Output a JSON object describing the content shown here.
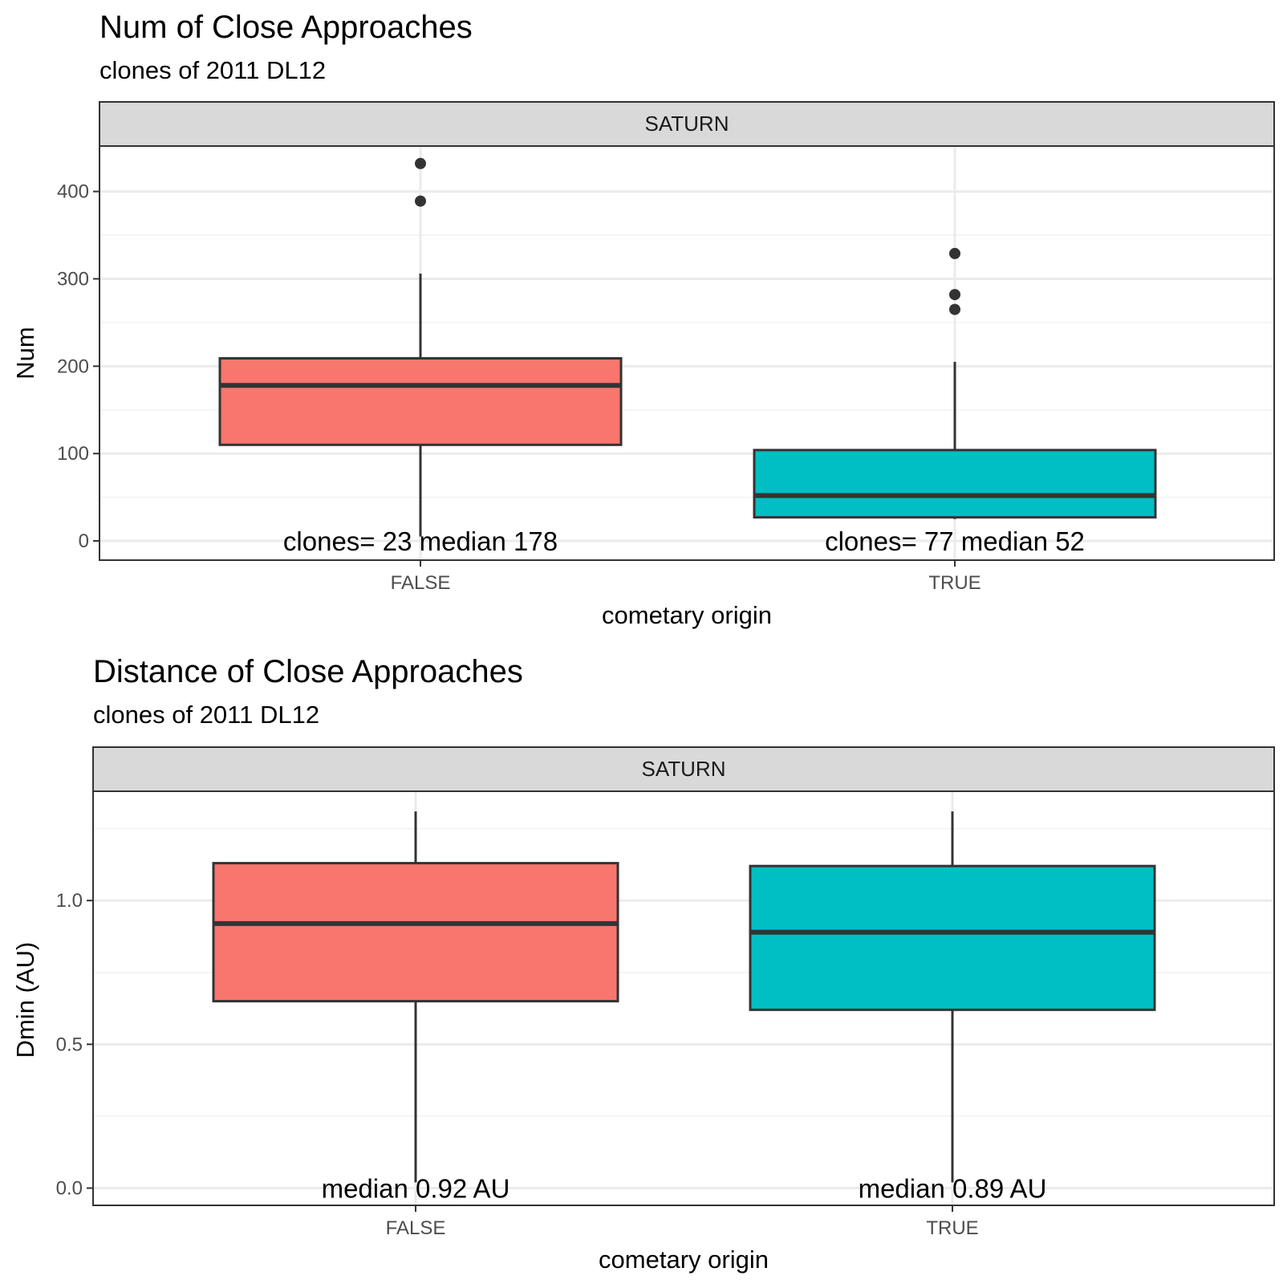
{
  "chart_data": [
    {
      "type": "boxplot",
      "title": "Num of Close Approaches",
      "subtitle": "clones of 2011 DL12",
      "facet": "SATURN",
      "xlabel": "cometary origin",
      "ylabel": "Num",
      "categories": [
        "FALSE",
        "TRUE"
      ],
      "yticks": [
        "0",
        "100",
        "200",
        "300",
        "400"
      ],
      "ytick_values": [
        0,
        100,
        200,
        300,
        400
      ],
      "ylim": [
        -22,
        452
      ],
      "grid": true,
      "colors": [
        "#F8766D",
        "#00BFC4"
      ],
      "boxes": [
        {
          "category": "FALSE",
          "whisker_low": 5,
          "q1": 110,
          "median": 178,
          "q3": 209,
          "whisker_high": 306,
          "outliers": [
            389,
            432
          ]
        },
        {
          "category": "TRUE",
          "whisker_low": 25,
          "q1": 27,
          "median": 52,
          "q3": 104,
          "whisker_high": 205,
          "outliers": [
            265,
            282,
            329
          ]
        }
      ],
      "annotations": [
        "clones= 23 median 178",
        "clones= 77 median 52"
      ]
    },
    {
      "type": "boxplot",
      "title": "Distance of Close Approaches",
      "subtitle": "clones of 2011 DL12",
      "facet": "SATURN",
      "xlabel": "cometary origin",
      "ylabel": "Dmin (AU)",
      "categories": [
        "FALSE",
        "TRUE"
      ],
      "yticks": [
        "0.0",
        "0.5",
        "1.0"
      ],
      "ytick_values": [
        0,
        0.5,
        1.0
      ],
      "ylim": [
        -0.06,
        1.38
      ],
      "grid": true,
      "colors": [
        "#F8766D",
        "#00BFC4"
      ],
      "boxes": [
        {
          "category": "FALSE",
          "whisker_low": 0.02,
          "q1": 0.65,
          "median": 0.92,
          "q3": 1.13,
          "whisker_high": 1.31,
          "outliers": []
        },
        {
          "category": "TRUE",
          "whisker_low": 0.02,
          "q1": 0.62,
          "median": 0.89,
          "q3": 1.12,
          "whisker_high": 1.31,
          "outliers": []
        }
      ],
      "annotations": [
        "median 0.92 AU",
        "median 0.89 AU"
      ]
    }
  ]
}
